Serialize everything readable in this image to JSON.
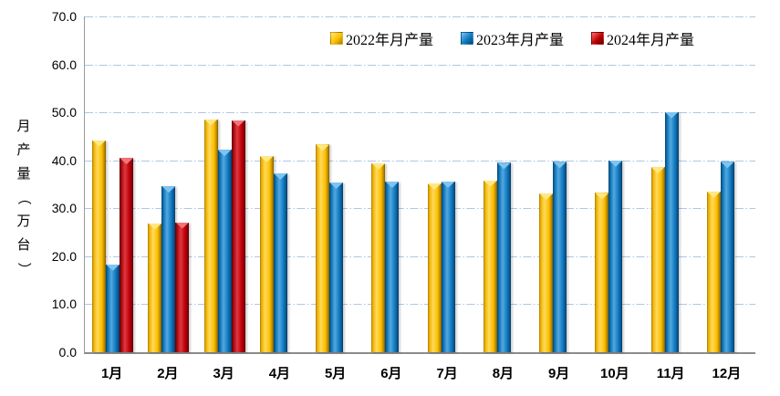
{
  "chart_data": {
    "type": "bar",
    "title": "",
    "categories": [
      "1月",
      "2月",
      "3月",
      "4月",
      "5月",
      "6月",
      "7月",
      "8月",
      "9月",
      "10月",
      "11月",
      "12月"
    ],
    "series": [
      {
        "name": "2022年月产量",
        "color": "#FFC000",
        "values": [
          44.2,
          26.9,
          48.6,
          40.9,
          43.3,
          39.4,
          35.2,
          35.8,
          33.1,
          33.2,
          38.6,
          33.5
        ]
      },
      {
        "name": "2023年月产量",
        "color": "#0F7AC2",
        "values": [
          18.3,
          34.6,
          42.2,
          37.3,
          35.4,
          35.6,
          35.6,
          39.5,
          39.7,
          40.0,
          50.1,
          39.7
        ]
      },
      {
        "name": "2024年月产量",
        "color": "#C00000",
        "values": [
          40.5,
          27.1,
          48.4,
          null,
          null,
          null,
          null,
          null,
          null,
          null,
          null,
          null
        ]
      }
    ],
    "xlabel": "",
    "ylabel": "月产量（万台）",
    "ylabel_chars": [
      "月",
      "产",
      "量",
      "（",
      "万",
      "台",
      "）"
    ],
    "ylim": [
      0,
      70
    ],
    "yticks": [
      0,
      10,
      20,
      30,
      40,
      50,
      60,
      70
    ],
    "ytick_labels": [
      "0.0",
      "10.0",
      "20.0",
      "30.0",
      "40.0",
      "50.0",
      "60.0",
      "70.0"
    ],
    "grid": "horizontal dash-dot",
    "gridline_color": "#AEC7E4",
    "axis_line_color": "#8c8c8c",
    "background_color": "#FFFFFF",
    "legend_position": "top-inside"
  }
}
